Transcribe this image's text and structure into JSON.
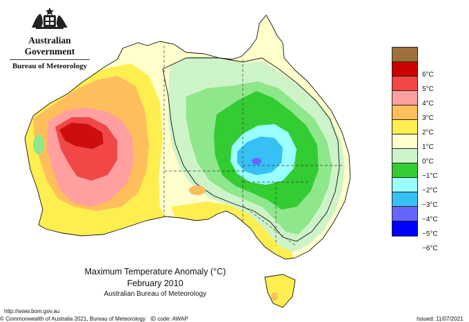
{
  "header": {
    "government": "Australian Government",
    "bureau": "Bureau of Meteorology",
    "crest_icon": "coat-of-arms-icon"
  },
  "map": {
    "title": "Maximum Temperature Anomaly (°C)",
    "period": "February 2010",
    "source": "Australian Bureau of Meteorology",
    "region": "Australia",
    "colors": {
      "ocean": "#ffffff",
      "land_neutral": "#ffffcc",
      "plus1": "#ffee4f",
      "plus2": "#ffbe5c",
      "plus3": "#ff9f9f",
      "plus4": "#f14747",
      "plus5": "#cc0e0e",
      "minus1": "#cdf4c8",
      "minus2": "#8ee78a",
      "minus3": "#33cc33",
      "minus4": "#99ffff",
      "minus5": "#36c0f3",
      "minus6": "#6666ff"
    }
  },
  "legend": {
    "items": [
      {
        "label": "",
        "color": "#a0703c"
      },
      {
        "label": "6°C",
        "color": "#cc0000"
      },
      {
        "label": "5°C",
        "color": "#f14747"
      },
      {
        "label": "4°C",
        "color": "#ff9f9f"
      },
      {
        "label": "3°C",
        "color": "#ffbe5c"
      },
      {
        "label": "2°C",
        "color": "#ffee4f"
      },
      {
        "label": "1°C",
        "color": "#ffffcc"
      },
      {
        "label": "0°C",
        "color": "#cdf4c8"
      },
      {
        "label": "−1°C",
        "color": "#33cc33"
      },
      {
        "label": "−2°C",
        "color": "#99ffff"
      },
      {
        "label": "−3°C",
        "color": "#36c0f3"
      },
      {
        "label": "−4°C",
        "color": "#6666ff"
      },
      {
        "label": "−5°C",
        "color": "#0000ff"
      },
      {
        "label": "−6°C",
        "color": ""
      }
    ]
  },
  "footer": {
    "url": "http://www.bom.gov.au",
    "copyright": "© Commonwealth of Australia 2021, Bureau of Meteorology",
    "id_code": "ID code: AWAP",
    "issued": "Issued: 11/07/2021"
  }
}
